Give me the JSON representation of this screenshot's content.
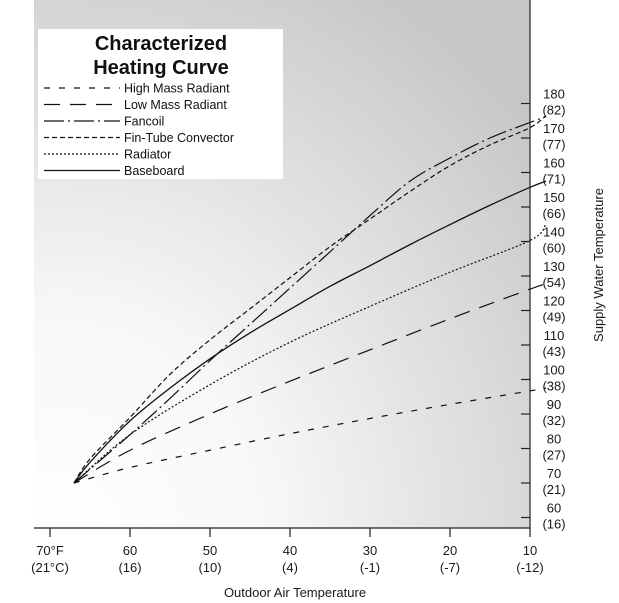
{
  "chart_data": {
    "type": "line",
    "title": "Characterized Heating Curve",
    "xlabel": "Outdoor Air Temperature",
    "ylabel": "Supply Water Temperature",
    "x_reversed": true,
    "xlim": [
      72,
      8
    ],
    "ylim": [
      60,
      180
    ],
    "grid": false,
    "legend_position": "top-left",
    "x_ticks": [
      {
        "value": 70,
        "f": "70°F",
        "c": "(21°C)"
      },
      {
        "value": 60,
        "f": "60",
        "c": "(16)"
      },
      {
        "value": 50,
        "f": "50",
        "c": "(10)"
      },
      {
        "value": 40,
        "f": "40",
        "c": "(4)"
      },
      {
        "value": 30,
        "f": "30",
        "c": "(-1)"
      },
      {
        "value": 20,
        "f": "20",
        "c": "(-7)"
      },
      {
        "value": 10,
        "f": "10",
        "c": "(-12)"
      }
    ],
    "y_ticks": [
      {
        "value": 60,
        "f": "60",
        "c": "(16)"
      },
      {
        "value": 70,
        "f": "70",
        "c": "(21)"
      },
      {
        "value": 80,
        "f": "80",
        "c": "(27)"
      },
      {
        "value": 90,
        "f": "90",
        "c": "(32)"
      },
      {
        "value": 100,
        "f": "100",
        "c": "(38)"
      },
      {
        "value": 110,
        "f": "110",
        "c": "(43)"
      },
      {
        "value": 120,
        "f": "120",
        "c": "(49)"
      },
      {
        "value": 130,
        "f": "130",
        "c": "(54)"
      },
      {
        "value": 140,
        "f": "140",
        "c": "(60)"
      },
      {
        "value": 150,
        "f": "150",
        "c": "(66)"
      },
      {
        "value": 160,
        "f": "160",
        "c": "(71)"
      },
      {
        "value": 170,
        "f": "170",
        "c": "(77)"
      },
      {
        "value": 180,
        "f": "180",
        "c": "(82)"
      }
    ],
    "series": [
      {
        "name": "High Mass Radiant",
        "dash": "6,9",
        "width": 1.2,
        "x": [
          67,
          60,
          50,
          40,
          30,
          20,
          10,
          8
        ],
        "y": [
          70,
          74.5,
          79.5,
          84.3,
          88.7,
          92.8,
          96.7,
          97.5
        ]
      },
      {
        "name": "Low Mass Radiant",
        "dash": "16,10",
        "width": 1.2,
        "x": [
          67,
          60,
          50,
          40,
          30,
          20,
          10,
          8
        ],
        "y": [
          70,
          79.5,
          90,
          99.5,
          108.6,
          117.6,
          126.2,
          127.7
        ]
      },
      {
        "name": "Fancoil",
        "dash": "20,4,2,4",
        "width": 1.2,
        "x": [
          67,
          65,
          60,
          55,
          50,
          45,
          40,
          35,
          30,
          25,
          20,
          15,
          10,
          8
        ],
        "y": [
          70,
          74,
          84,
          94.5,
          105.5,
          116,
          126.5,
          137,
          147.5,
          157.5,
          164.2,
          170,
          174.5,
          176.2
        ]
      },
      {
        "name": "Fin-Tube Convector",
        "dash": "5,3",
        "width": 1.2,
        "x": [
          67,
          65,
          60,
          55,
          50,
          45,
          40,
          35,
          30,
          25,
          20,
          15,
          10,
          8
        ],
        "y": [
          70,
          77,
          89,
          101.5,
          111.5,
          120.5,
          129.5,
          138.5,
          146.5,
          154.5,
          162,
          168,
          173,
          176.5
        ]
      },
      {
        "name": "Radiator",
        "dash": "2,2",
        "width": 1.2,
        "x": [
          67,
          60,
          50,
          40,
          30,
          20,
          10,
          8
        ],
        "y": [
          70,
          84,
          98.5,
          110.8,
          121.2,
          131.1,
          140.3,
          145
        ]
      },
      {
        "name": "Baseboard",
        "dash": "",
        "width": 1.3,
        "x": [
          67,
          65,
          60,
          55,
          50,
          45,
          40,
          35,
          30,
          25,
          20,
          15,
          10,
          8
        ],
        "y": [
          70,
          76,
          88,
          97.5,
          106,
          113.5,
          120.3,
          127,
          133,
          139.1,
          144.9,
          150.5,
          155.7,
          157.5
        ]
      }
    ]
  },
  "colors": {
    "line": "#111111",
    "axis": "#222222",
    "panel_light": "#ffffff",
    "panel_dark": "#c8c8c8"
  }
}
